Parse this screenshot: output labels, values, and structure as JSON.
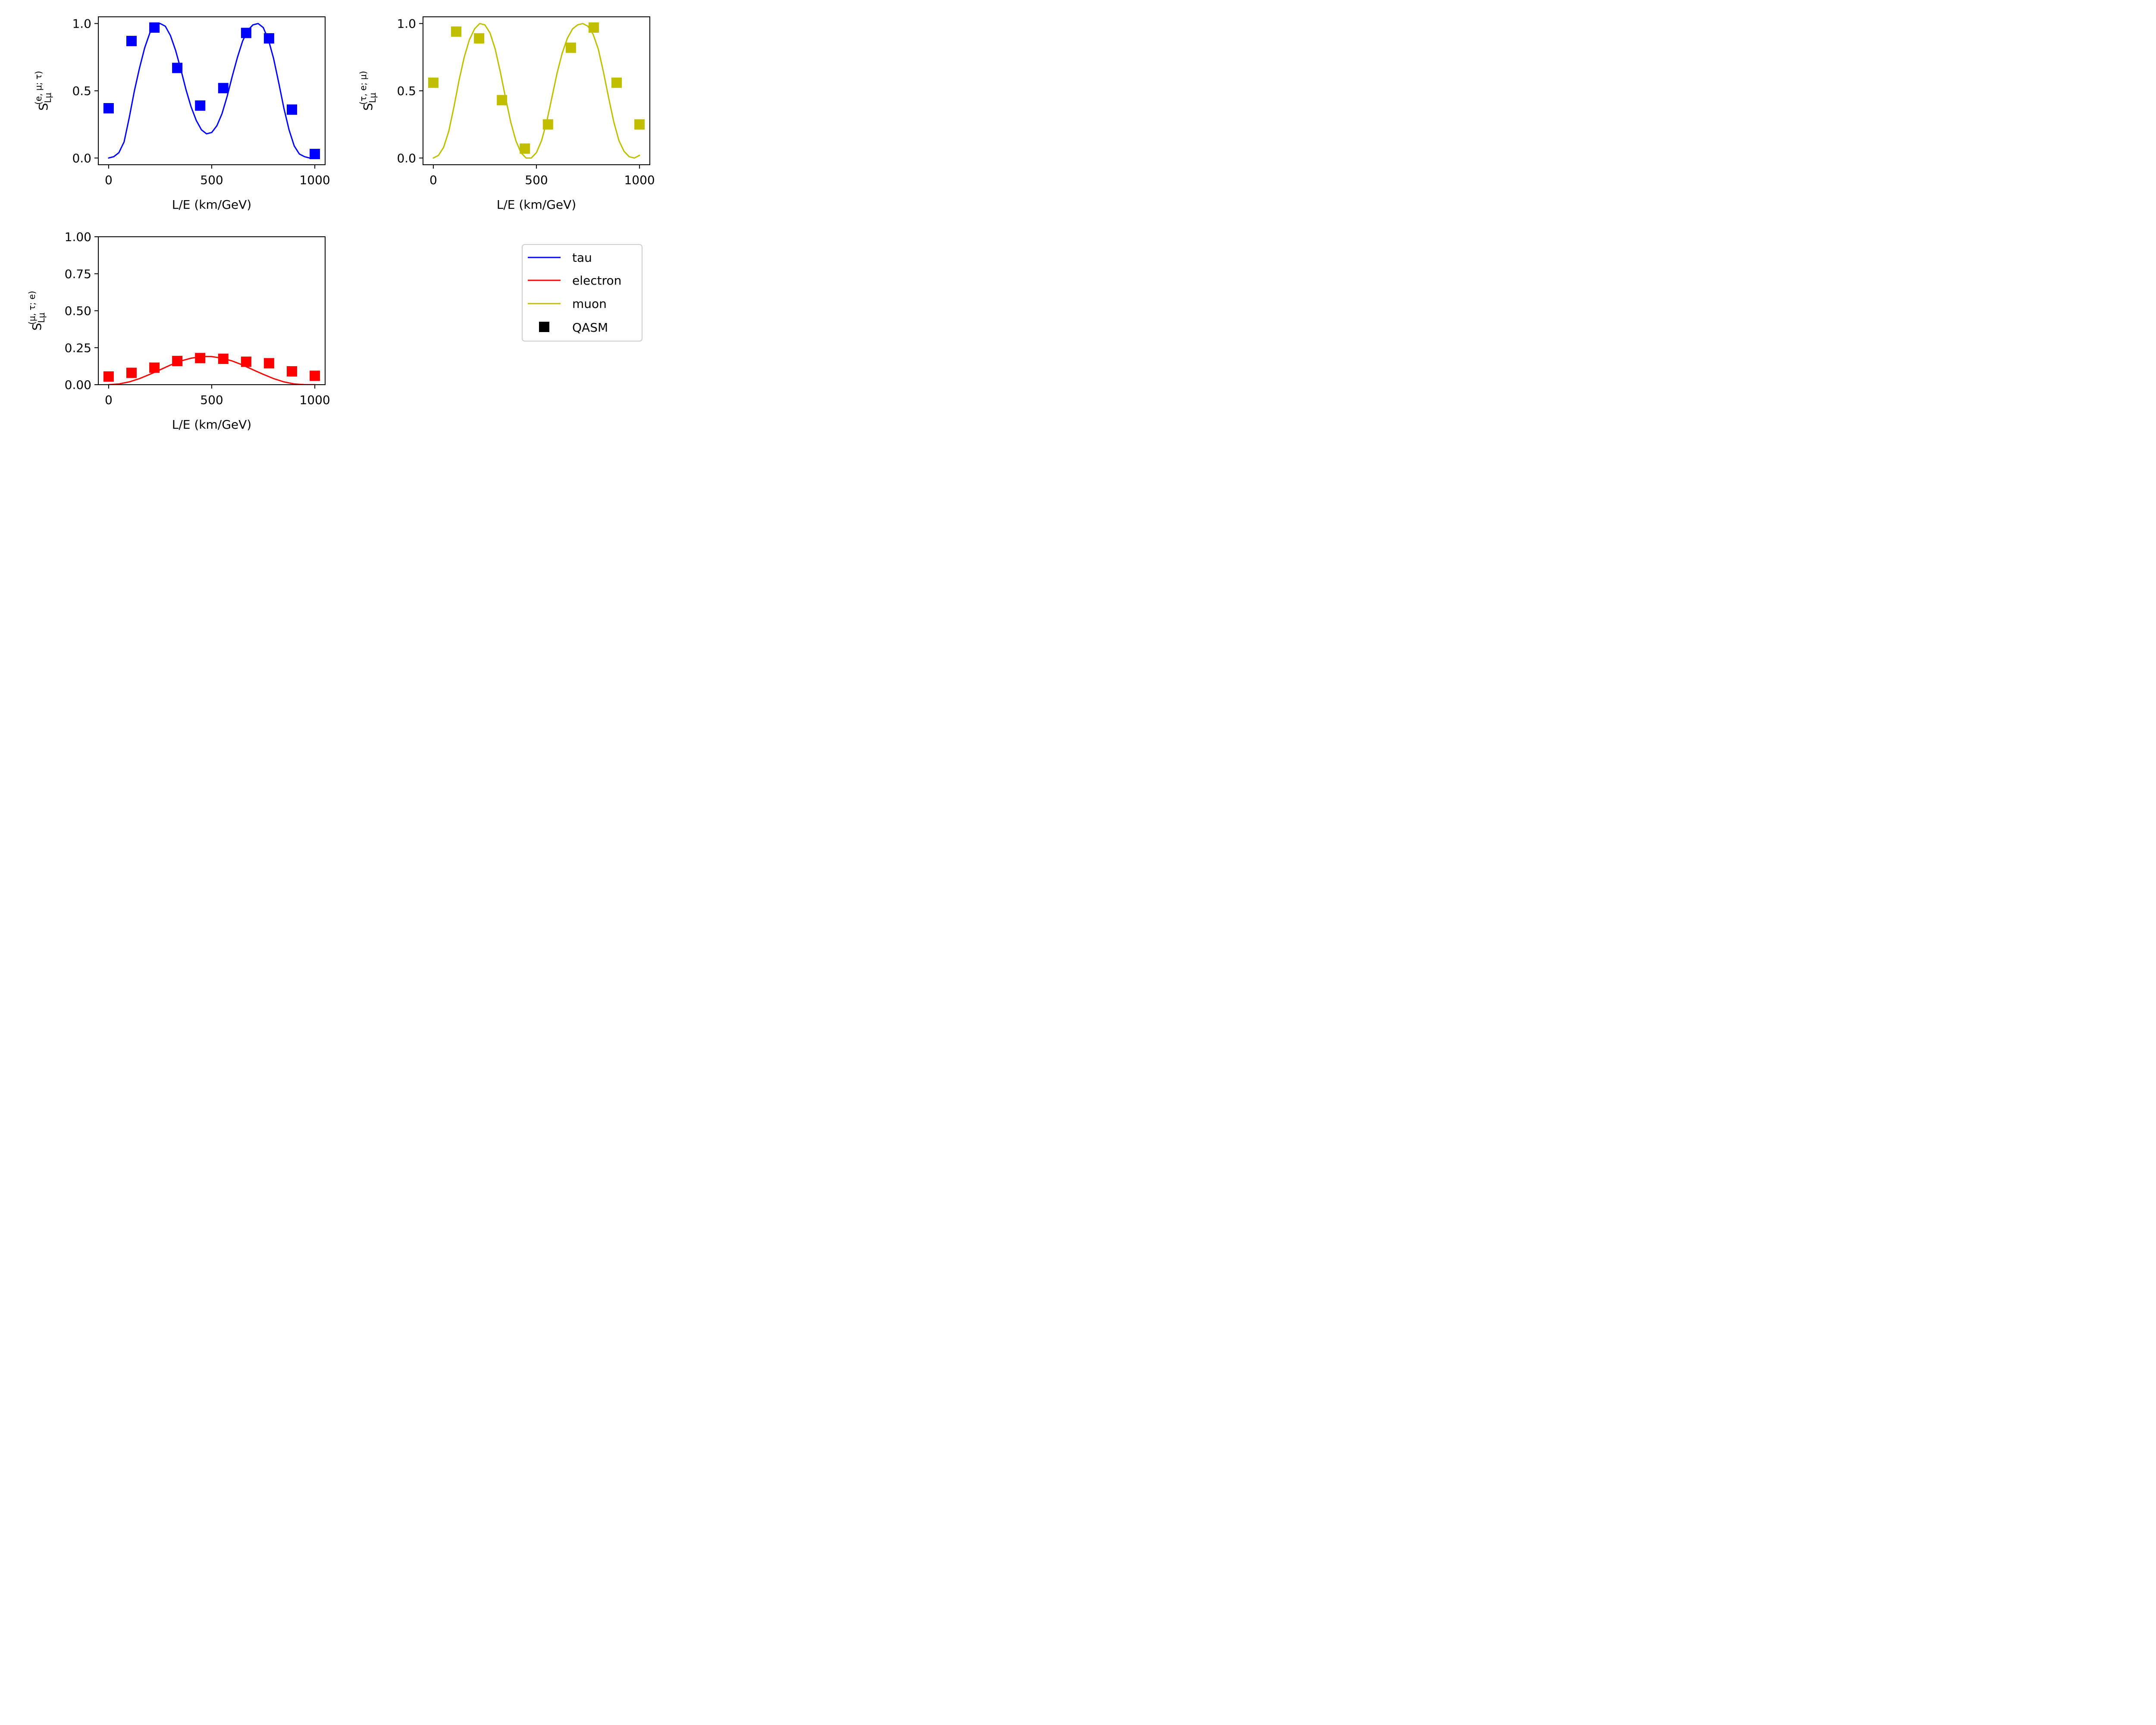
{
  "chart_data": [
    {
      "type": "line",
      "panel": "top-left",
      "ylabel": "S_Lμ^(e,μ;τ)",
      "ylabel_parts": {
        "base": "S",
        "sub": "Lμ",
        "sup": "(e, μ; τ)"
      },
      "xlabel": "L/E (km/GeV)",
      "xlim": [
        0,
        1000
      ],
      "ylim": [
        0.0,
        1.0
      ],
      "xticks": [
        0,
        500,
        1000
      ],
      "yticks": [
        "0.0",
        "0.5",
        "1.0"
      ],
      "grid": false,
      "series": [
        {
          "name": "tau",
          "kind": "line",
          "color": "#0000ff",
          "points": [
            [
              0,
              0.0
            ],
            [
              25,
              0.01
            ],
            [
              50,
              0.04
            ],
            [
              75,
              0.12
            ],
            [
              100,
              0.3
            ],
            [
              125,
              0.5
            ],
            [
              150,
              0.67
            ],
            [
              175,
              0.82
            ],
            [
              200,
              0.93
            ],
            [
              225,
              0.99
            ],
            [
              250,
              1.0
            ],
            [
              275,
              0.98
            ],
            [
              300,
              0.91
            ],
            [
              325,
              0.8
            ],
            [
              350,
              0.66
            ],
            [
              375,
              0.51
            ],
            [
              400,
              0.38
            ],
            [
              425,
              0.28
            ],
            [
              450,
              0.21
            ],
            [
              475,
              0.18
            ],
            [
              500,
              0.19
            ],
            [
              525,
              0.24
            ],
            [
              550,
              0.33
            ],
            [
              575,
              0.46
            ],
            [
              600,
              0.61
            ],
            [
              625,
              0.75
            ],
            [
              650,
              0.87
            ],
            [
              675,
              0.95
            ],
            [
              700,
              0.99
            ],
            [
              725,
              1.0
            ],
            [
              750,
              0.97
            ],
            [
              775,
              0.88
            ],
            [
              800,
              0.74
            ],
            [
              825,
              0.56
            ],
            [
              850,
              0.37
            ],
            [
              875,
              0.21
            ],
            [
              900,
              0.09
            ],
            [
              925,
              0.03
            ],
            [
              950,
              0.01
            ],
            [
              975,
              0.0
            ],
            [
              1000,
              0.02
            ]
          ]
        },
        {
          "name": "QASM",
          "kind": "marker",
          "color": "#0000ff",
          "x": [
            0,
            111,
            222,
            333,
            444,
            556,
            667,
            778,
            889,
            1000
          ],
          "y": [
            0.37,
            0.87,
            0.97,
            0.67,
            0.39,
            0.52,
            0.93,
            0.89,
            0.36,
            0.03
          ]
        }
      ]
    },
    {
      "type": "line",
      "panel": "top-right",
      "ylabel": "S_Lμ^(τ,e;μ)",
      "ylabel_parts": {
        "base": "S",
        "sub": "Lμ",
        "sup": "(τ, e; μ)"
      },
      "xlabel": "L/E (km/GeV)",
      "xlim": [
        0,
        1000
      ],
      "ylim": [
        0.0,
        1.0
      ],
      "xticks": [
        0,
        500,
        1000
      ],
      "yticks": [
        "0.0",
        "0.5",
        "1.0"
      ],
      "grid": false,
      "series": [
        {
          "name": "muon",
          "kind": "line",
          "color": "#bfbf00",
          "points": [
            [
              0,
              0.0
            ],
            [
              25,
              0.02
            ],
            [
              50,
              0.08
            ],
            [
              75,
              0.2
            ],
            [
              100,
              0.38
            ],
            [
              125,
              0.58
            ],
            [
              150,
              0.75
            ],
            [
              175,
              0.88
            ],
            [
              200,
              0.96
            ],
            [
              225,
              1.0
            ],
            [
              250,
              0.99
            ],
            [
              275,
              0.93
            ],
            [
              300,
              0.81
            ],
            [
              325,
              0.64
            ],
            [
              350,
              0.45
            ],
            [
              375,
              0.27
            ],
            [
              400,
              0.13
            ],
            [
              425,
              0.04
            ],
            [
              450,
              0.0
            ],
            [
              475,
              0.0
            ],
            [
              500,
              0.04
            ],
            [
              525,
              0.13
            ],
            [
              550,
              0.27
            ],
            [
              575,
              0.45
            ],
            [
              600,
              0.63
            ],
            [
              625,
              0.78
            ],
            [
              650,
              0.89
            ],
            [
              675,
              0.96
            ],
            [
              700,
              0.99
            ],
            [
              725,
              1.0
            ],
            [
              750,
              0.98
            ],
            [
              775,
              0.92
            ],
            [
              800,
              0.81
            ],
            [
              825,
              0.64
            ],
            [
              850,
              0.45
            ],
            [
              875,
              0.27
            ],
            [
              900,
              0.13
            ],
            [
              925,
              0.05
            ],
            [
              950,
              0.01
            ],
            [
              975,
              0.0
            ],
            [
              1000,
              0.02
            ]
          ]
        },
        {
          "name": "QASM",
          "kind": "marker",
          "color": "#bfbf00",
          "x": [
            0,
            111,
            222,
            333,
            444,
            556,
            667,
            778,
            889,
            1000
          ],
          "y": [
            0.56,
            0.94,
            0.89,
            0.43,
            0.07,
            0.25,
            0.82,
            0.97,
            0.56,
            0.25
          ]
        }
      ]
    },
    {
      "type": "line",
      "panel": "bottom-left",
      "ylabel": "S_Lμ^(μ,τ;e)",
      "ylabel_parts": {
        "base": "S",
        "sub": "Lμ",
        "sup": "(μ, τ; e)"
      },
      "xlabel": "L/E (km/GeV)",
      "xlim": [
        0,
        1000
      ],
      "ylim": [
        0.0,
        1.0
      ],
      "xticks": [
        0,
        500,
        1000
      ],
      "yticks": [
        "0.00",
        "0.25",
        "0.50",
        "0.75",
        "1.00"
      ],
      "grid": false,
      "series": [
        {
          "name": "electron",
          "kind": "line",
          "color": "#ff0000",
          "points": [
            [
              0,
              0.0
            ],
            [
              50,
              0.005
            ],
            [
              100,
              0.019
            ],
            [
              150,
              0.041
            ],
            [
              200,
              0.07
            ],
            [
              250,
              0.101
            ],
            [
              300,
              0.133
            ],
            [
              350,
              0.16
            ],
            [
              400,
              0.179
            ],
            [
              450,
              0.19
            ],
            [
              500,
              0.19
            ],
            [
              550,
              0.179
            ],
            [
              600,
              0.16
            ],
            [
              650,
              0.133
            ],
            [
              700,
              0.101
            ],
            [
              750,
              0.07
            ],
            [
              800,
              0.041
            ],
            [
              850,
              0.019
            ],
            [
              900,
              0.005
            ],
            [
              950,
              0.0
            ],
            [
              1000,
              0.0
            ]
          ]
        },
        {
          "name": "QASM",
          "kind": "marker",
          "color": "#ff0000",
          "x": [
            0,
            111,
            222,
            333,
            444,
            556,
            667,
            778,
            889,
            1000
          ],
          "y": [
            0.055,
            0.08,
            0.115,
            0.16,
            0.18,
            0.175,
            0.155,
            0.145,
            0.09,
            0.06
          ]
        }
      ]
    }
  ],
  "legend": {
    "placement": "bottom-right",
    "items": [
      {
        "label": "tau",
        "kind": "line",
        "color": "#0000ff"
      },
      {
        "label": "electron",
        "kind": "line",
        "color": "#ff0000"
      },
      {
        "label": "muon",
        "kind": "line",
        "color": "#bfbf00"
      },
      {
        "label": "QASM",
        "kind": "marker",
        "color": "#000000"
      }
    ]
  }
}
